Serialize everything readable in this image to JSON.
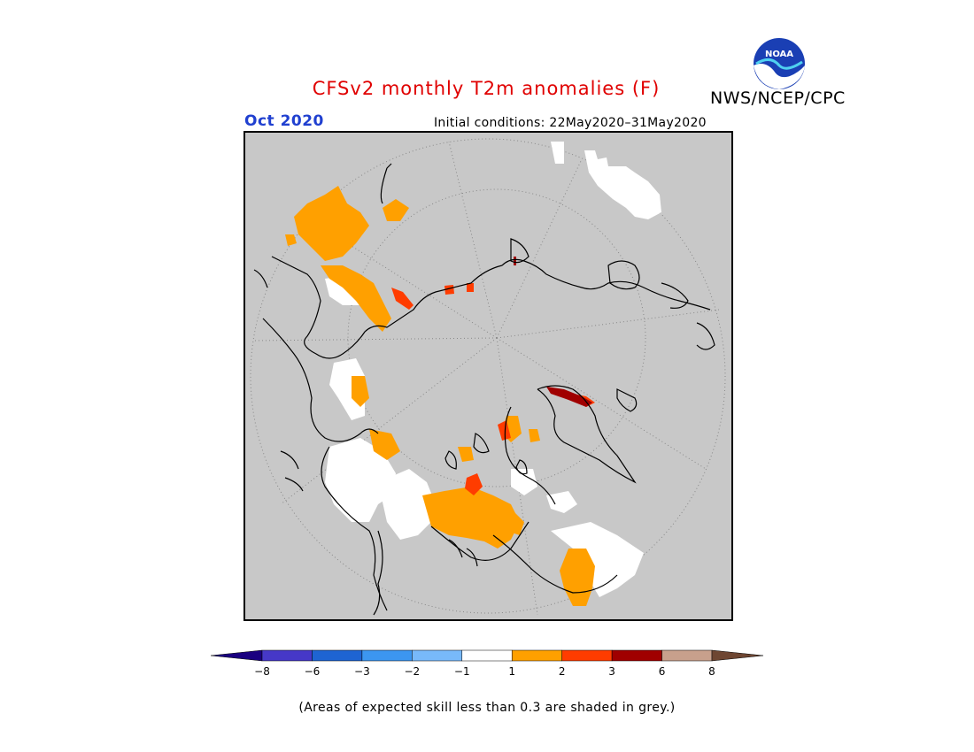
{
  "header": {
    "title": "CFSv2 monthly T2m anomalies (F)",
    "agency": "NWS/NCEP/CPC",
    "logo_text": "NOAA",
    "month": "Oct 2020",
    "initial_conditions": "Initial conditions: 22May2020–31May2020"
  },
  "colors": {
    "title": "#e00000",
    "month": "#2040d0",
    "skill_mask_grey": "#c8c8c8",
    "white": "#ffffff",
    "orange": "#ffa000",
    "red_orange": "#ff3c00",
    "dark_red": "#a00000"
  },
  "legend": {
    "bins": [
      {
        "range": "< -8",
        "color": "#1a0080"
      },
      {
        "range": "-8 to -6",
        "color": "#4638c8"
      },
      {
        "range": "-6 to -3",
        "color": "#1e64d2"
      },
      {
        "range": "-3 to -2",
        "color": "#3c96f0"
      },
      {
        "range": "-2 to -1",
        "color": "#78b9fa"
      },
      {
        "range": "-1 to 1",
        "color": "#ffffff"
      },
      {
        "range": "1 to 2",
        "color": "#ffa000"
      },
      {
        "range": "2 to 3",
        "color": "#ff3c00"
      },
      {
        "range": "3 to 6",
        "color": "#a00000"
      },
      {
        "range": "6 to 8",
        "color": "#c8a08c"
      },
      {
        "range": "> 8",
        "color": "#6e4632"
      }
    ],
    "tick_labels": [
      "−8",
      "−6",
      "−3",
      "−2",
      "−1",
      "1",
      "2",
      "3",
      "6",
      "8"
    ]
  },
  "footnote": "(Areas of expected skill less than 0.3 are shaded in grey.)"
}
